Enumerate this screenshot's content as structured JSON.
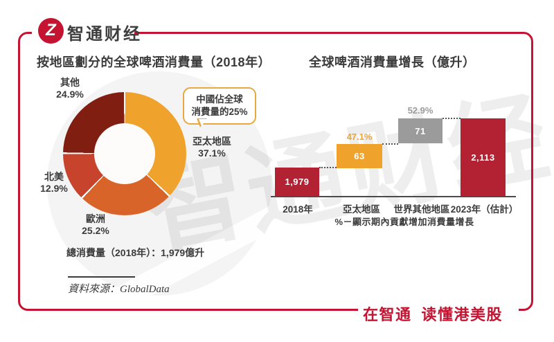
{
  "brand": {
    "name": "智通财经",
    "logo_glyph": "Z",
    "slogan_left": "在智通",
    "slogan_right": "读懂港美股",
    "accent_red": "#C41432",
    "text_dark": "#3B3B3B"
  },
  "watermark": {
    "text": "智通财经"
  },
  "left_chart": {
    "callout": {
      "line1": "中國佔全球",
      "line2_prefix": "消費量的",
      "line2_bold": "25%"
    }
  },
  "chart_data": [
    {
      "type": "pie",
      "subtype": "donut",
      "title": "按地區劃分的全球啤酒消費量（2018年）",
      "unit": "%",
      "start_angle_deg": 0,
      "direction": "clockwise",
      "slices": [
        {
          "label": "亞太地區",
          "value": 37.1,
          "display": "37.1%",
          "color": "#F0A32C"
        },
        {
          "label": "歐洲",
          "value": 25.2,
          "display": "25.2%",
          "color": "#D9642A"
        },
        {
          "label": "北美",
          "value": 12.9,
          "display": "12.9%",
          "color": "#C7432B"
        },
        {
          "label": "其他",
          "value": 24.9,
          "display": "24.9%",
          "color": "#801E12"
        }
      ],
      "annotation": "中國佔全球消費量的25%",
      "total_label": "總消費量（2018年）：1,979億升",
      "source": "資料來源：GlobalData"
    },
    {
      "type": "bar",
      "subtype": "waterfall",
      "title": "全球啤酒消費量增長（億升）",
      "unit": "億升",
      "categories": [
        "2018年",
        "亞太地區",
        "世界其他地區",
        "2023年（估計）"
      ],
      "values": [
        1979,
        63,
        71,
        2113
      ],
      "bars": [
        {
          "category": "2018年",
          "value": 1979,
          "display": "1,979",
          "role": "absolute",
          "color": "#B22233"
        },
        {
          "category": "亞太地區",
          "value": 63,
          "display": "63",
          "pct_label": "47.1%",
          "role": "increment",
          "color": "#F0A32C"
        },
        {
          "category": "世界其他地區",
          "value": 71,
          "display": "71",
          "pct_label": "52.9%",
          "role": "increment",
          "color": "#9B9B9B"
        },
        {
          "category": "2023年（估計）",
          "value": 2113,
          "display": "2,113",
          "role": "absolute",
          "color": "#B22233"
        }
      ],
      "footnote": "%－顯示期內貢獻增加消費量增長",
      "axis": {
        "y_visible": false,
        "baseline": 0
      }
    }
  ]
}
